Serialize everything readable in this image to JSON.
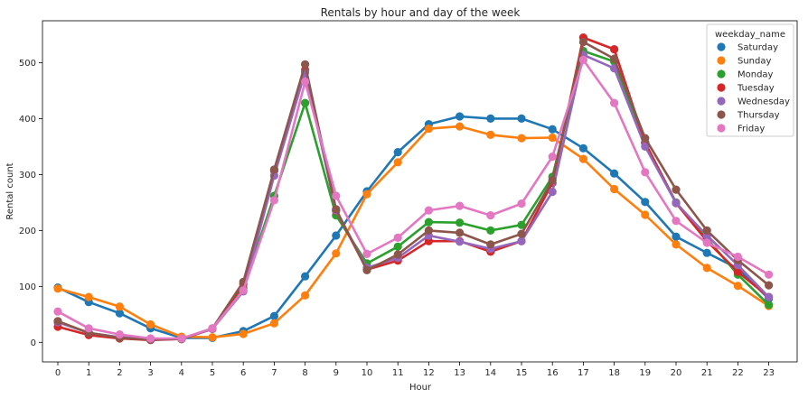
{
  "chart_data": {
    "type": "line",
    "title": "Rentals by hour and day of the week",
    "xlabel": "Hour",
    "ylabel": "Rental count",
    "categories": [
      "0",
      "1",
      "2",
      "3",
      "4",
      "5",
      "6",
      "7",
      "8",
      "9",
      "10",
      "11",
      "12",
      "13",
      "14",
      "15",
      "16",
      "17",
      "18",
      "19",
      "20",
      "21",
      "22",
      "23"
    ],
    "ylim": [
      -35,
      575
    ],
    "yticks": [
      0,
      100,
      200,
      300,
      400,
      500
    ],
    "grid": false,
    "legend": {
      "title": "weekday_name",
      "placement": "top-right"
    },
    "series": [
      {
        "name": "Saturday",
        "color": "#1f77b4",
        "values": [
          98,
          72,
          52,
          25,
          8,
          8,
          20,
          47,
          118,
          191,
          270,
          340,
          390,
          404,
          400,
          400,
          381,
          347,
          302,
          251,
          189,
          160,
          132,
          78
        ]
      },
      {
        "name": "Sunday",
        "color": "#ff7f0e",
        "values": [
          96,
          81,
          64,
          32,
          10,
          9,
          15,
          34,
          84,
          159,
          265,
          322,
          382,
          386,
          371,
          365,
          366,
          328,
          274,
          228,
          175,
          133,
          101,
          65
        ]
      },
      {
        "name": "Monday",
        "color": "#2ca02c",
        "values": [
          37,
          17,
          9,
          6,
          6,
          24,
          97,
          262,
          428,
          227,
          141,
          171,
          215,
          214,
          200,
          210,
          296,
          521,
          502,
          357,
          250,
          186,
          121,
          67
        ]
      },
      {
        "name": "Tuesday",
        "color": "#d62728",
        "values": [
          28,
          13,
          7,
          4,
          6,
          24,
          104,
          307,
          487,
          235,
          130,
          146,
          181,
          181,
          162,
          181,
          285,
          545,
          524,
          357,
          249,
          181,
          126,
          81
        ]
      },
      {
        "name": "Wednesday",
        "color": "#9467bd",
        "values": [
          36,
          17,
          9,
          5,
          6,
          24,
          91,
          298,
          483,
          236,
          133,
          151,
          191,
          180,
          167,
          181,
          269,
          514,
          490,
          350,
          249,
          191,
          138,
          81
        ]
      },
      {
        "name": "Thursday",
        "color": "#8c564b",
        "values": [
          38,
          17,
          8,
          5,
          6,
          25,
          108,
          309,
          497,
          238,
          129,
          157,
          200,
          196,
          175,
          194,
          290,
          537,
          507,
          365,
          273,
          200,
          147,
          102
        ]
      },
      {
        "name": "Friday",
        "color": "#e377c2",
        "values": [
          55,
          25,
          14,
          7,
          7,
          25,
          93,
          254,
          466,
          262,
          158,
          187,
          236,
          244,
          227,
          248,
          332,
          505,
          428,
          304,
          217,
          178,
          153,
          121
        ]
      }
    ]
  }
}
